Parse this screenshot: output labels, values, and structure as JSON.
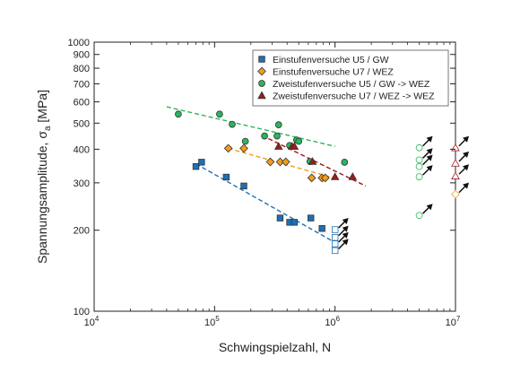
{
  "chart_data": {
    "type": "scatter",
    "title": "",
    "xlabel": "Schwingspielzahl, N",
    "ylabel_main": "Spannungsamplitude, σ",
    "ylabel_sub": "a",
    "ylabel_unit": " [MPa]",
    "x_scale": "log",
    "y_scale": "log",
    "xlim": [
      10000,
      10000000
    ],
    "ylim": [
      100,
      1000
    ],
    "x_ticks": [
      {
        "value": 10000,
        "base": "10",
        "exp": "4"
      },
      {
        "value": 100000,
        "base": "10",
        "exp": "5"
      },
      {
        "value": 1000000,
        "base": "10",
        "exp": "6"
      },
      {
        "value": 10000000,
        "base": "10",
        "exp": "7"
      }
    ],
    "y_ticks": [
      {
        "value": 100,
        "label": "100"
      },
      {
        "value": 200,
        "label": "200"
      },
      {
        "value": 300,
        "label": "300"
      },
      {
        "value": 400,
        "label": "400"
      },
      {
        "value": 500,
        "label": "500"
      },
      {
        "value": 600,
        "label": "600"
      },
      {
        "value": 700,
        "label": "700"
      },
      {
        "value": 800,
        "label": "800"
      },
      {
        "value": 900,
        "label": "900"
      },
      {
        "value": 1000,
        "label": "1000"
      }
    ],
    "grid": false,
    "legend_position": "top-right",
    "series": [
      {
        "name": "Einstufenversuche U5 / GW",
        "marker": "square",
        "color": "#1f6fb5",
        "points": [
          [
            70000,
            345
          ],
          [
            78000,
            358
          ],
          [
            125000,
            315
          ],
          [
            175000,
            292
          ],
          [
            350000,
            222
          ],
          [
            420000,
            214
          ],
          [
            460000,
            214
          ],
          [
            630000,
            222
          ],
          [
            780000,
            203
          ]
        ],
        "runouts": [
          [
            1000000,
            201
          ],
          [
            1000000,
            188
          ],
          [
            1000000,
            178
          ],
          [
            1000000,
            168
          ]
        ],
        "trend": [
          [
            70000,
            353
          ],
          [
            1000000,
            180
          ]
        ]
      },
      {
        "name": "Einstufenversuche U7 / WEZ",
        "marker": "diamond",
        "color": "#f39c1e",
        "points": [
          [
            130000,
            403
          ],
          [
            175000,
            403
          ],
          [
            290000,
            359
          ],
          [
            350000,
            359
          ],
          [
            390000,
            359
          ],
          [
            640000,
            313
          ],
          [
            780000,
            313
          ],
          [
            830000,
            313
          ]
        ],
        "runouts": [
          [
            10000000,
            272
          ]
        ],
        "trend": [
          [
            130000,
            403
          ],
          [
            1000000,
            312
          ]
        ]
      },
      {
        "name": "Zweistufenversuche U5 / GW -> WEZ",
        "marker": "circle",
        "color": "#2db35d",
        "points": [
          [
            50000,
            540
          ],
          [
            110000,
            540
          ],
          [
            140000,
            495
          ],
          [
            180000,
            428
          ],
          [
            260000,
            448
          ],
          [
            330000,
            448
          ],
          [
            340000,
            493
          ],
          [
            420000,
            413
          ],
          [
            480000,
            433
          ],
          [
            500000,
            428
          ],
          [
            620000,
            360
          ],
          [
            1200000,
            358
          ]
        ],
        "runouts": [
          [
            5000000,
            405
          ],
          [
            5000000,
            365
          ],
          [
            5000000,
            345
          ],
          [
            5000000,
            316
          ],
          [
            5000000,
            227
          ]
        ],
        "trend": [
          [
            40000,
            575
          ],
          [
            1000000,
            410
          ]
        ]
      },
      {
        "name": "Zweistufenversuche U7 / WEZ -> WEZ",
        "marker": "triangle",
        "color": "#9b1c1c",
        "points": [
          [
            340000,
            410
          ],
          [
            440000,
            410
          ],
          [
            460000,
            410
          ],
          [
            650000,
            360
          ],
          [
            1000000,
            316
          ],
          [
            1400000,
            316
          ]
        ],
        "runouts": [
          [
            10000000,
            405
          ],
          [
            10000000,
            355
          ],
          [
            10000000,
            318
          ]
        ],
        "trend": [
          [
            280000,
            438
          ],
          [
            1800000,
            292
          ]
        ]
      }
    ]
  }
}
